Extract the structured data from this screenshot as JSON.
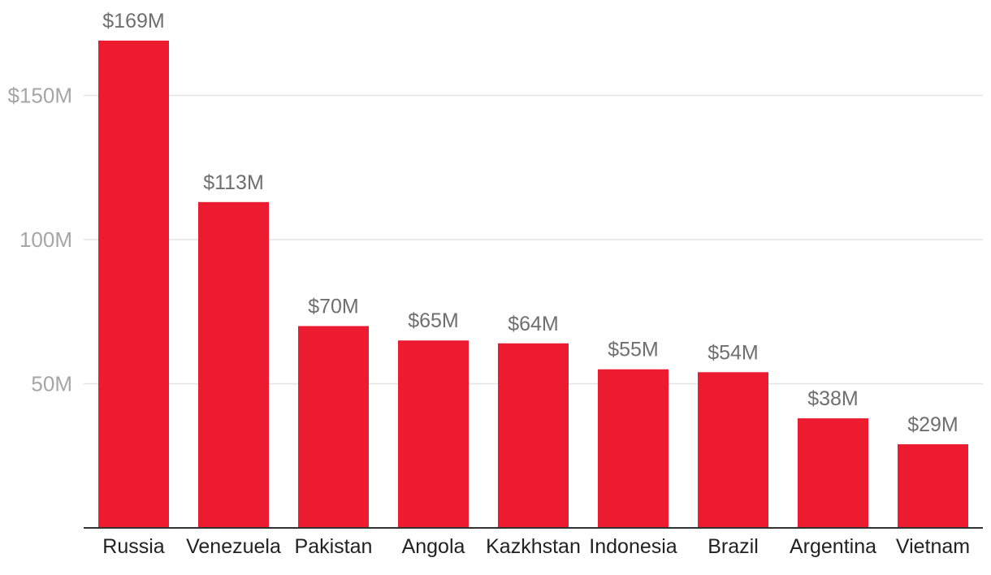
{
  "chart_data": {
    "type": "bar",
    "title": "",
    "xlabel": "",
    "ylabel": "",
    "categories": [
      "Russia",
      "Venezuela",
      "Pakistan",
      "Angola",
      "Kazkhstan",
      "Indonesia",
      "Brazil",
      "Argentina",
      "Vietnam"
    ],
    "values": [
      169,
      113,
      70,
      65,
      64,
      55,
      54,
      38,
      29
    ],
    "value_labels": [
      "$169M",
      "$113M",
      "$70M",
      "$65M",
      "$64M",
      "$55M",
      "$54M",
      "$38M",
      "$29M"
    ],
    "ylim": [
      0,
      169
    ],
    "yticks": [
      50,
      100,
      150
    ],
    "ytick_labels": [
      "50M",
      "100M",
      "$150M"
    ],
    "grid": true,
    "bar_color": "#ec1b30"
  }
}
